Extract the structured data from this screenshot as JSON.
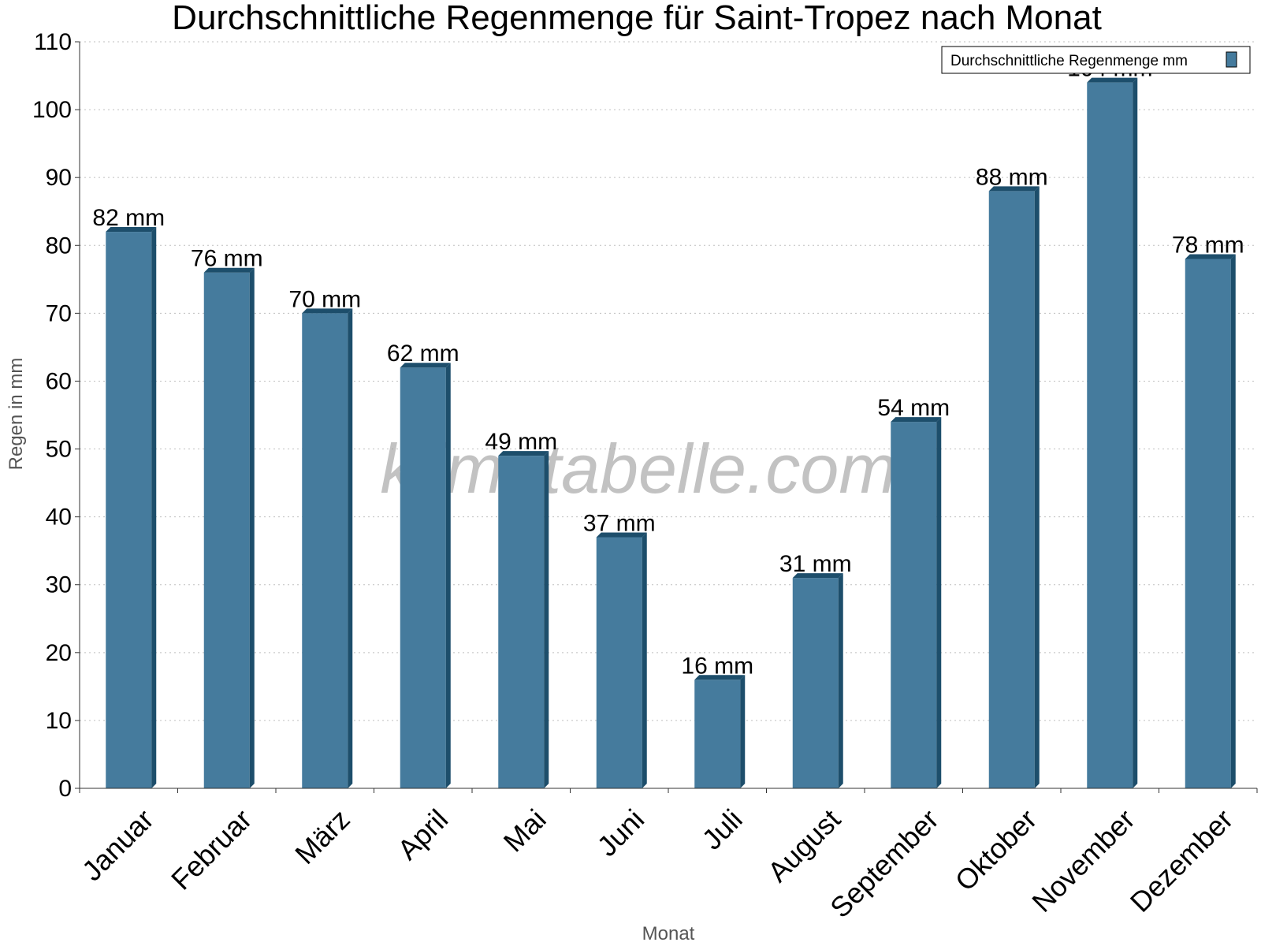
{
  "watermark": "klimatabelle.com",
  "colors": {
    "bar_front": "#457b9d",
    "bar_side": "#1d4e6b",
    "bar_top": "#1d4e6b",
    "grid": "#bfbfbf",
    "axis": "#333333"
  },
  "chart_data": {
    "type": "bar",
    "title": "Durchschnittliche Regenmenge für Saint-Tropez nach Monat",
    "xlabel": "Monat",
    "ylabel": "Regen in mm",
    "ylim": [
      0,
      110
    ],
    "yticks": [
      0,
      10,
      20,
      30,
      40,
      50,
      60,
      70,
      80,
      90,
      100,
      110
    ],
    "grid": true,
    "legend_position": "top-right",
    "categories": [
      "Januar",
      "Februar",
      "März",
      "April",
      "Mai",
      "Juni",
      "Juli",
      "August",
      "September",
      "Oktober",
      "November",
      "Dezember"
    ],
    "series": [
      {
        "name": "Durchschnittliche Regenmenge mm",
        "values": [
          82,
          76,
          70,
          62,
          49,
          37,
          16,
          31,
          54,
          88,
          104,
          78
        ],
        "data_labels": [
          "82 mm",
          "76 mm",
          "70 mm",
          "62 mm",
          "49 mm",
          "37 mm",
          "16 mm",
          "31 mm",
          "54 mm",
          "88 mm",
          "104 mm",
          "78 mm"
        ]
      }
    ]
  }
}
